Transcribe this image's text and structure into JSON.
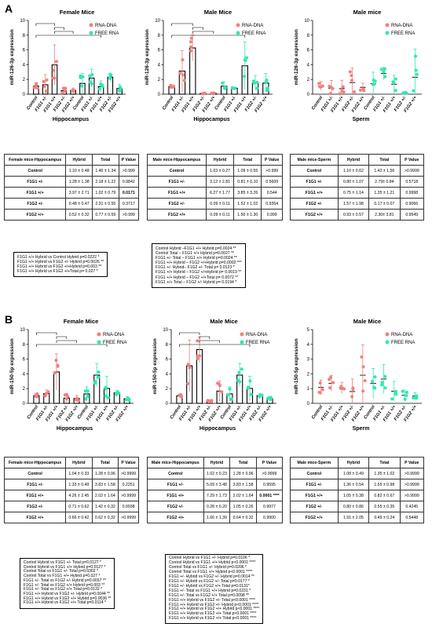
{
  "panels": [
    {
      "letter": "A",
      "charts": [
        {
          "title": "Female Mice",
          "ylabel": "miR-126-3p expression",
          "xlabel": "Hippocampus",
          "ylim": [
            0,
            10
          ],
          "yticks": [
            "0",
            "2",
            "4",
            "6",
            "8",
            "10"
          ],
          "legend": [
            "RNA-DNA",
            "FREE RNA"
          ],
          "categories": [
            "Control",
            "F1G1 +/-",
            "F1G1 +/+",
            "F1G2 +/-",
            "F1G2 +/+"
          ]
        },
        {
          "title": "Male Mice",
          "ylabel": "miR-126-3p expression",
          "xlabel": "Hippocampus",
          "ylim": [
            0,
            10
          ],
          "yticks": [
            "0",
            "2",
            "4",
            "6",
            "8",
            "10"
          ],
          "legend": [
            "RNA-DNA",
            "FREE RNA"
          ],
          "categories": [
            "Control",
            "F1G1 +/-",
            "F1G1 +/+",
            "F1G2 +/-",
            "F1G2 +/+"
          ]
        },
        {
          "title": "Male mice",
          "ylabel": "miR-126-3p expression",
          "xlabel": "Sperm",
          "ylim": [
            0,
            10
          ],
          "yticks": [
            "0",
            "2",
            "4",
            "6",
            "8",
            "10"
          ],
          "legend": [
            "RNA-DNA",
            "FREE RNA"
          ],
          "categories": [
            "Control",
            "F1G1 +/-",
            "F1G1 +/+",
            "F1G2 +/-",
            "F1G2 +/+"
          ]
        }
      ],
      "tables": [
        {
          "headers": [
            "Female mice-Hippocampus",
            "Hybrid",
            "Total",
            "P Value"
          ],
          "rows": [
            [
              "Control",
              "1.10 ± 0.48",
              "1.46 ± 1.34",
              ">0.999"
            ],
            [
              "F1G1 +/-",
              "1.28 ± 1.38",
              "2.18 ± 1.22",
              "0.9842"
            ],
            [
              "F1G1 +/+",
              "3.97 ± 2.71",
              "1.02 ± 0.79",
              "0.0171"
            ],
            [
              "F1G2 +/-",
              "0.48 ± 0.47",
              "2.31 ± 0.55",
              "0.3717"
            ],
            [
              "F1G2 +/+",
              "0.52 ± 0.32",
              "0.77 ± 0.59",
              ">0.999"
            ]
          ]
        },
        {
          "headers": [
            "Male mice-Hippocampus",
            "Hybrid",
            "Total",
            "P Value"
          ],
          "rows": [
            [
              "Control",
              "1.03 ± 0.27",
              "1.09 ± 0.55",
              ">0.999"
            ],
            [
              "F1G1 +/-",
              "3.12 ± 2.81",
              "0.81 ± 0.10",
              "0.5609"
            ],
            [
              "F1G1 +/+",
              "6.27 ± 1.77",
              "3.85 ± 3.26",
              "0.544"
            ],
            [
              "F1G2 +/-",
              "0.09 ± 0.11",
              "1.52 ± 1.02",
              "0.9354"
            ],
            [
              "F1G2 +/+",
              "0.09 ± 0.11",
              "1.50 ± 1.30",
              "0.999"
            ]
          ]
        },
        {
          "headers": [
            "Male mice-Sperm",
            "Hybrid",
            "Total",
            "P Value"
          ],
          "rows": [
            [
              "Control",
              "1.10 ± 0.62",
              "1.42 ± 1.56",
              ">0.9999"
            ],
            [
              "F1G1 +/-",
              "0.80 ± 1.07",
              "2.79± 0.84",
              "0.5718"
            ],
            [
              "F1G1 +/+",
              "0.75 ± 1.14",
              "1.35 ± 1.21",
              "0.9998"
            ],
            [
              "F1G2 +/-",
              "1.57 ± 1.98",
              "0.17 ± 0.07",
              "0.9066"
            ],
            [
              "F1G2 +/+",
              "0.93 ± 0.57",
              "2.30± 3.81",
              "0.9549"
            ]
          ]
        }
      ],
      "stats": [
        [
          "F1G1 +/+ Hybrid vs Control  Hybrid  p=0.0222 *",
          "F1G1 +/+ Hybrid vs F1G2 +/- Hybrid p=0.0026 **",
          "F1G1 +/+ Hybrid vs F1G2 +/+Hybrid p=0.003 **",
          "F1G1 +/+ Hybrid vs F1G2 +/+Total    p= 0.027 *"
        ],
        [
          "Control Hybrid –F1G1 +/+  Hybrid  p=0.0024 **",
          "Control Total  – F1G1 +/+  Hybrid  p=0.0027 **",
          "F1G1 +/- Total – F1G1 +/+ Hybrid  p=0.0024 **",
          "F1G1 +/+ Hybrid – F1G2 +/+Hybrid p=0.0002 ***",
          "F1G1 +/- Hybrid– F1G2 +/- Total  p= 0.0123 *",
          "F1G1 +/+ Hybrid – F1G2 +/+Hybrid p= 0.0019 **",
          "F1G1 +/+ Hybrid – F1G2 +/+Total  p= 0.0072 **",
          "F1G1 +/+ Total  – F1G2 +/- Hybrid  p= 0.0194 *"
        ]
      ]
    },
    {
      "letter": "B",
      "charts": [
        {
          "title": "Female Mice",
          "ylabel": "miR-150-5p expression",
          "xlabel": "Hippocampus",
          "ylim": [
            0,
            10
          ],
          "yticks": [
            "0",
            "2",
            "4",
            "6",
            "8",
            "10"
          ],
          "legend": [
            "RNA-DNA",
            "FREE RNA"
          ],
          "categories": [
            "Control",
            "F1G1 +/-",
            "F1G1 +/+",
            "F1G2 +/-",
            "F1G2 +/+"
          ]
        },
        {
          "title": "Male Mice",
          "ylabel": "miR-150-5p expression",
          "xlabel": "Hippocampus",
          "ylim": [
            0,
            10
          ],
          "yticks": [
            "0",
            "2",
            "4",
            "6",
            "8",
            "10"
          ],
          "legend": [
            "RNA-DNA",
            "FREE RNA"
          ],
          "categories": [
            "Control",
            "F1G1 +/-",
            "F1G1 +/+",
            "F1G2 +/-",
            "F1G2 +/+"
          ]
        },
        {
          "title": "Male Mice",
          "ylabel": "miR-150-5p expression",
          "xlabel": "Sperm",
          "ylim": [
            0,
            5
          ],
          "yticks": [
            "0",
            "1",
            "2",
            "3",
            "4",
            "5"
          ],
          "legend": [
            "RNA-DNA",
            "FREE RNA"
          ],
          "categories": [
            "Control",
            "F1G1 +/-",
            "F1G1 +/+",
            "F1G2 +/-",
            "F1G2 +/+"
          ]
        }
      ],
      "tables": [
        {
          "headers": [
            "Female mice-Hippocampus",
            "Hybrid",
            "Total",
            "P Value"
          ],
          "rows": [
            [
              "Control",
              "1.04 ± 0.33",
              "1.28 ± 0.96",
              ">0.9999"
            ],
            [
              "F1G1 +/-",
              "1.33 ± 0.49",
              "3.83 ± 1.58",
              "0.2251"
            ],
            [
              "F1G1 +/+",
              "4.26 ± 2.45",
              "2.02 ± 1.64",
              ">0.9999"
            ],
            [
              "F1G2 +/-",
              "0.71 ± 0.62",
              "1.42 ± 0.32",
              "0.9938"
            ],
            [
              "F1G2 +/+",
              "0.66 ± 0.42",
              "0.62 ± 0.32",
              ">0.9999"
            ]
          ]
        },
        {
          "headers": [
            "Male mice-Hippocampus",
            "Hybrid",
            "Total",
            "P Value"
          ],
          "rows": [
            [
              "Control",
              "1.02 ± 0.23",
              "1.28 ± 0.96",
              ">0.9999"
            ],
            [
              "F1G1 +/-",
              "5.09 ± 3.48",
              "3.83 ± 1.58",
              "0.9595"
            ],
            [
              "F1G1 +/+",
              "7.29 ± 1.73",
              "2.02 ± 1.64",
              "0.0001 ****"
            ],
            [
              "F1G2 +/-",
              "0.28 ± 0.20",
              "1.05 ± 0.26",
              "0.9977"
            ],
            [
              "F1G2 +/+",
              "1.66 ± 1.39",
              "0.64 ± 0.32",
              "0.9900"
            ]
          ]
        },
        {
          "headers": [
            "Male mice-Sperm",
            "Hybrid",
            "Total",
            "P Value"
          ],
          "rows": [
            [
              "Control",
              "1.08 ± 0.49",
              "1.35 ± 1.02",
              ">0.9999"
            ],
            [
              "F1G1 +/-",
              "1.36 ± 0.54",
              "1.65 ± 0.98",
              ">0.9999"
            ],
            [
              "F1G1 +/+",
              "1.05 ± 0.38",
              "0.82 ± 0.67",
              ">0.9999"
            ],
            [
              "F1G2 +/-",
              "0.80 ± 0.86",
              "0.55 ± 0.35",
              "0.4245"
            ],
            [
              "F1G2 +/+",
              "1.91 ± 2.05",
              "0.49 ± 0.24",
              "0.5448"
            ]
          ]
        }
      ],
      "stats": [
        [
          "Control Hybrid vs F1G1 +/- Total    p=0.0127 *",
          "Control Hybrid vs F1G1 +/+ Hybrid p=0.0127 *",
          "Control Total vs F1G1 +/- Total p=0.0302 *",
          "Control Total vs F1G1 +/+ Hybrid p=0.027 *",
          "F1G1 +/- Total vs F1G2 +/- Hybrid p=0.0037 **",
          "F1G1 +/- Total vs F1G2 +/+ Hybrid p=0.003 **",
          "F1G1 +/- Total vs F1G2 +/+ Total p=0.0132 *",
          "F1G1 +/+ Hybrid vs F1G2 +/- Hybrid p=0.0044 **",
          "F1G1 +/+ Hybrid vs F1G2 +/+ Hybrid p=0.0036 **",
          "F1G1 +/+ Hybrid vs F1G2 +/+ Total p=0.0114 *"
        ],
        [
          "Control Hybrid vs F1G1 +/- Hybrid p=0.0106 *",
          "Control Hybrid vs F1G1 +/+ Hybrid p<0.0001 ****",
          "Control Total vs F1G1 +/- Hybrid p=0.0206 *",
          "Control Total vs F1G1 +/+ Hybrid p<0.0001 ****",
          "F1G1 +/- Hybrid vs F1G2 +/- Hybrid  p=0.0014 **",
          "F1G1 +/- Hybrid vs F1G2 +/- Total p=0.0177 *",
          "F1G1 +/- Hybrid vs F1G2 +/+ Total p=0.0131*",
          "F1G1 +/- Total vs F1G1 +/+ Hybrid p=0.0231 *",
          "F1G1 +/- Total vs F1G2 +/+ Total p=0.0098 **",
          "F1G1 +/+ Hybrid vs F1G2 +/- Total p<0.0001 ****",
          "F1G1 +/+ Hybrid vs F1G2 +/- Hybrid p<0.0001 ****",
          "F1G1 +/+ Hybrid vs F1G2 +/+ Hybrid p<0.0001 ****",
          "F1G1 +/+ Hybrid vs F1G2 +/+ Total p<0.0001 ****",
          "F1G1 +/+ Hybrid vs F1G2 +/+ Total p<0.0001 ****"
        ]
      ]
    }
  ],
  "colors": {
    "rna_dna": "#f08080",
    "free_rna": "#2ee8b5",
    "axis": "#000000"
  },
  "chart_data": [
    {
      "type": "bar",
      "title": "Female Mice",
      "ylabel": "miR-126-3p expression",
      "xlabel": "Hippocampus",
      "ylim": [
        0,
        10
      ],
      "categories": [
        "Control",
        "F1G1 +/-",
        "F1G1 +/+",
        "F1G2 +/-",
        "F1G2 +/+"
      ],
      "series": [
        {
          "name": "RNA-DNA",
          "values": [
            1.1,
            1.28,
            3.97,
            0.48,
            0.52
          ],
          "errors": [
            0.48,
            1.38,
            2.71,
            0.47,
            0.32
          ]
        },
        {
          "name": "FREE RNA",
          "values": [
            1.46,
            2.18,
            1.02,
            2.31,
            0.77
          ],
          "errors": [
            1.34,
            1.22,
            0.79,
            0.55,
            0.59
          ]
        }
      ]
    },
    {
      "type": "bar",
      "title": "Male Mice",
      "ylabel": "miR-126-3p expression",
      "xlabel": "Hippocampus",
      "ylim": [
        0,
        10
      ],
      "categories": [
        "Control",
        "F1G1 +/-",
        "F1G1 +/+",
        "F1G2 +/-",
        "F1G2 +/+"
      ],
      "series": [
        {
          "name": "RNA-DNA",
          "values": [
            1.03,
            3.12,
            6.27,
            0.09,
            0.09
          ],
          "errors": [
            0.27,
            2.81,
            1.77,
            0.11,
            0.11
          ]
        },
        {
          "name": "FREE RNA",
          "values": [
            1.09,
            0.81,
            3.85,
            1.52,
            1.5
          ],
          "errors": [
            0.55,
            0.1,
            3.26,
            1.02,
            1.3
          ]
        }
      ]
    },
    {
      "type": "bar",
      "title": "Male mice",
      "ylabel": "miR-126-3p expression",
      "xlabel": "Sperm",
      "ylim": [
        0,
        10
      ],
      "categories": [
        "Control",
        "F1G1 +/-",
        "F1G1 +/+",
        "F1G2 +/-",
        "F1G2 +/+"
      ],
      "series": [
        {
          "name": "RNA-DNA",
          "values": [
            1.1,
            0.8,
            0.75,
            1.57,
            0.93
          ],
          "errors": [
            0.62,
            1.07,
            1.14,
            1.98,
            0.57
          ]
        },
        {
          "name": "FREE RNA",
          "values": [
            1.42,
            2.79,
            1.35,
            0.17,
            2.3
          ],
          "errors": [
            1.56,
            0.84,
            1.21,
            0.07,
            3.81
          ]
        }
      ]
    },
    {
      "type": "bar",
      "title": "Female Mice",
      "ylabel": "miR-150-5p expression",
      "xlabel": "Hippocampus",
      "ylim": [
        0,
        10
      ],
      "categories": [
        "Control",
        "F1G1 +/-",
        "F1G1 +/+",
        "F1G2 +/-",
        "F1G2 +/+"
      ],
      "series": [
        {
          "name": "RNA-DNA",
          "values": [
            1.04,
            1.33,
            4.26,
            0.71,
            0.66
          ],
          "errors": [
            0.33,
            0.49,
            2.45,
            0.62,
            0.42
          ]
        },
        {
          "name": "FREE RNA",
          "values": [
            1.28,
            3.83,
            2.02,
            1.42,
            0.62
          ],
          "errors": [
            0.96,
            1.58,
            1.64,
            0.32,
            0.32
          ]
        }
      ]
    },
    {
      "type": "bar",
      "title": "Male Mice",
      "ylabel": "miR-150-5p expression",
      "xlabel": "Hippocampus",
      "ylim": [
        0,
        10
      ],
      "categories": [
        "Control",
        "F1G1 +/-",
        "F1G1 +/+",
        "F1G2 +/-",
        "F1G2 +/+"
      ],
      "series": [
        {
          "name": "RNA-DNA",
          "values": [
            1.02,
            5.09,
            7.29,
            0.28,
            1.66
          ],
          "errors": [
            0.23,
            3.48,
            1.73,
            0.2,
            1.39
          ]
        },
        {
          "name": "FREE RNA",
          "values": [
            1.28,
            3.83,
            2.02,
            1.05,
            0.64
          ],
          "errors": [
            0.96,
            1.58,
            1.64,
            0.26,
            0.32
          ]
        }
      ]
    },
    {
      "type": "bar",
      "title": "Male Mice",
      "ylabel": "miR-150-5p expression",
      "xlabel": "Sperm",
      "ylim": [
        0,
        5
      ],
      "categories": [
        "Control",
        "F1G1 +/-",
        "F1G1 +/+",
        "F1G2 +/-",
        "F1G2 +/+"
      ],
      "series": [
        {
          "name": "RNA-DNA",
          "values": [
            1.08,
            1.36,
            1.05,
            0.8,
            1.91
          ],
          "errors": [
            0.49,
            0.54,
            0.38,
            0.86,
            2.05
          ]
        },
        {
          "name": "FREE RNA",
          "values": [
            1.35,
            1.65,
            0.82,
            0.55,
            0.49
          ],
          "errors": [
            1.02,
            0.98,
            0.67,
            0.35,
            0.24
          ]
        }
      ]
    }
  ]
}
